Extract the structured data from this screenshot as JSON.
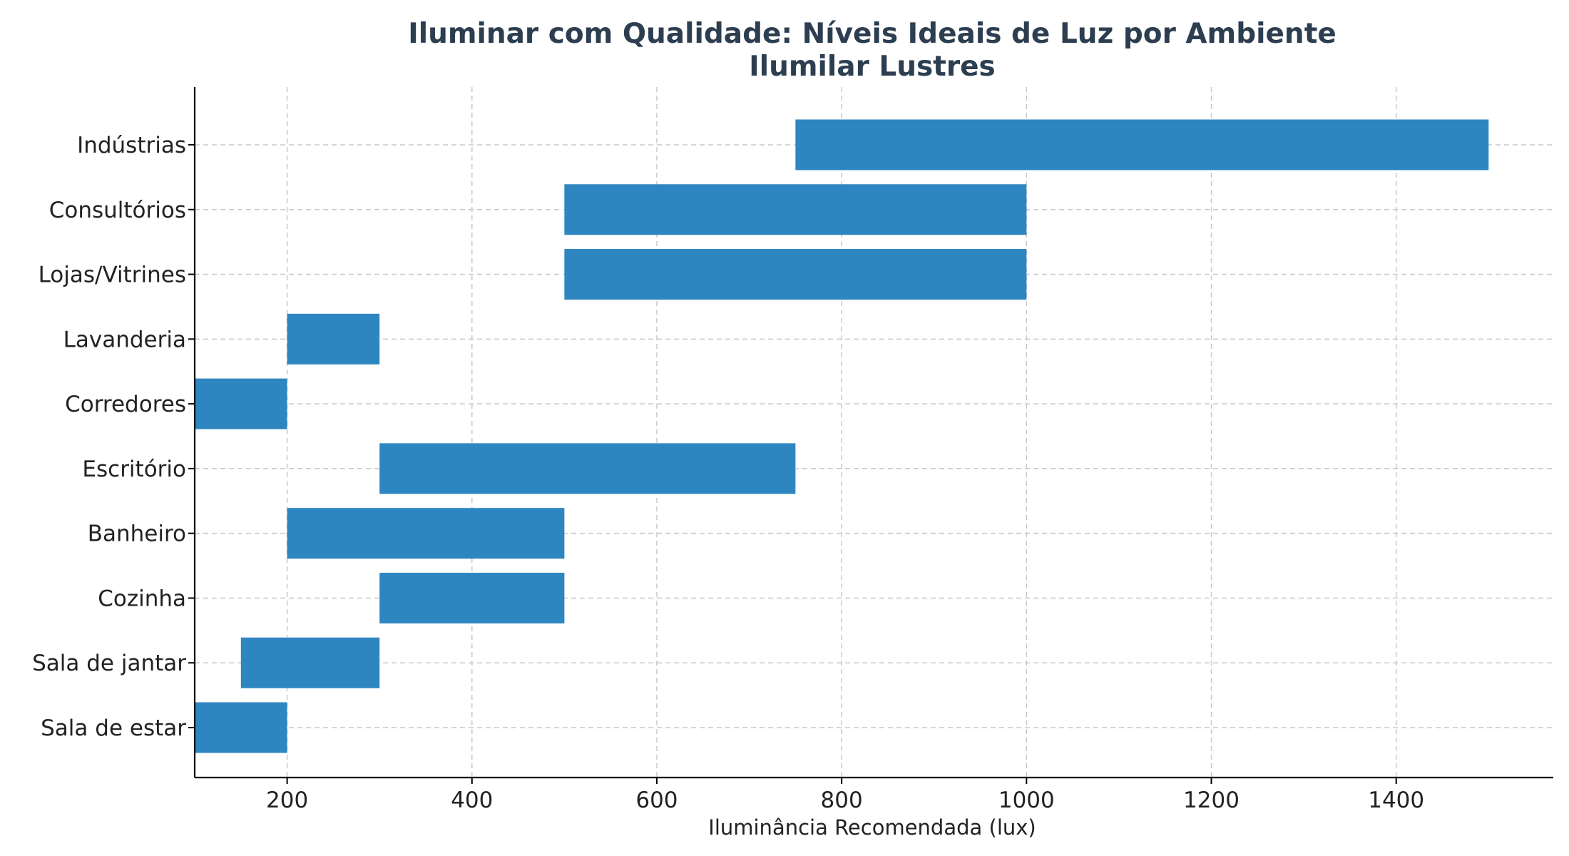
{
  "chart_data": {
    "type": "bar",
    "orientation": "horizontal",
    "title": "Iluminar com Qualidade: Níveis Ideais de Luz por Ambiente",
    "subtitle": "Ilumilar Lustres",
    "xlabel": "Iluminância Recomendada (lux)",
    "ylabel": "",
    "xlim": [
      100,
      1570
    ],
    "xticks": [
      200,
      400,
      600,
      800,
      1000,
      1200,
      1400
    ],
    "grid": true,
    "bar_color": "#2e86c1",
    "categories": [
      "Sala de estar",
      "Sala de jantar",
      "Cozinha",
      "Banheiro",
      "Escritório",
      "Corredores",
      "Lavanderia",
      "Lojas/Vitrines",
      "Consultórios",
      "Indústrias"
    ],
    "ranges": [
      {
        "min": 100,
        "max": 200
      },
      {
        "min": 150,
        "max": 300
      },
      {
        "min": 300,
        "max": 500
      },
      {
        "min": 200,
        "max": 500
      },
      {
        "min": 300,
        "max": 750
      },
      {
        "min": 100,
        "max": 200
      },
      {
        "min": 200,
        "max": 300
      },
      {
        "min": 500,
        "max": 1000
      },
      {
        "min": 500,
        "max": 1000
      },
      {
        "min": 750,
        "max": 1500
      }
    ]
  }
}
